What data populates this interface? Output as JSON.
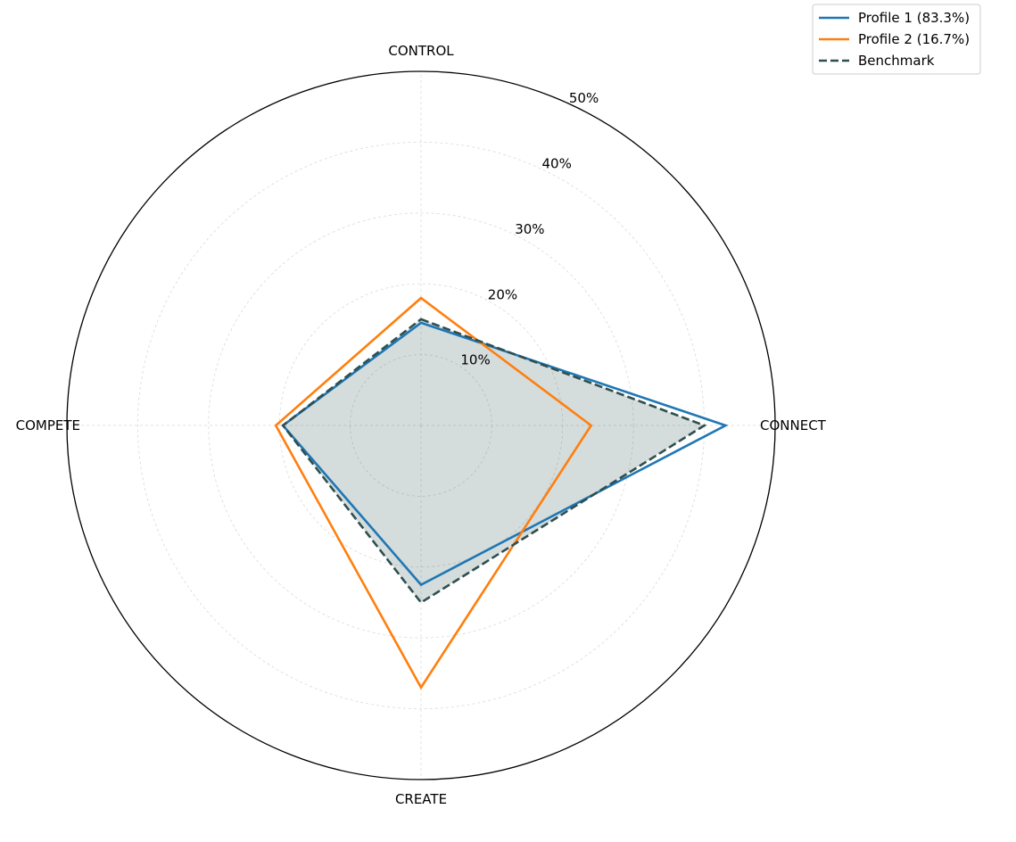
{
  "chart_data": {
    "type": "radar",
    "axes": [
      "CONTROL",
      "CONNECT",
      "CREATE",
      "COMPETE"
    ],
    "r_ticks": [
      "10%",
      "20%",
      "30%",
      "40%",
      "50%"
    ],
    "r_tick_values": [
      10,
      20,
      30,
      40,
      50
    ],
    "r_max": 50,
    "grid": true,
    "legend_position": "top-right",
    "series": [
      {
        "name": "Profile 1 (83.3%)",
        "values": [
          14.5,
          43,
          22.5,
          19.5
        ],
        "color": "#1f77b4",
        "line_style": "solid"
      },
      {
        "name": "Profile 2 (16.7%)",
        "values": [
          18,
          24,
          37,
          20.5
        ],
        "color": "#ff7f0e",
        "line_style": "solid"
      },
      {
        "name": "Benchmark",
        "values": [
          15,
          40,
          25,
          19.5
        ],
        "color": "#2f4f4f",
        "line_style": "dashed",
        "fill": "#2f4f4f"
      }
    ]
  }
}
